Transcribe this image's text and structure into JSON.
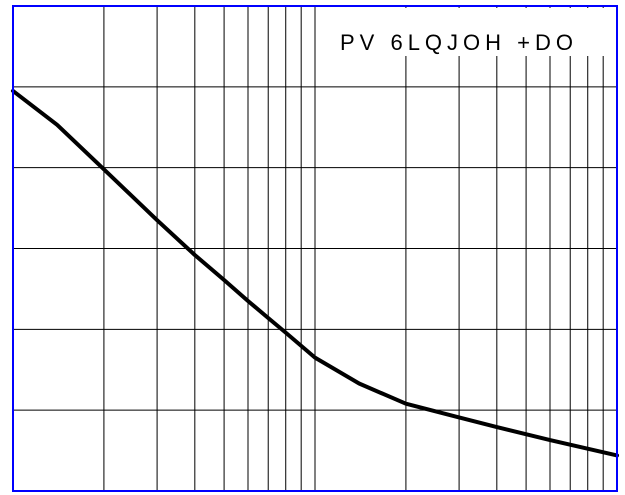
{
  "chart_data": {
    "type": "line",
    "title": "",
    "xlabel": "",
    "ylabel": "",
    "x_scale": "log",
    "x_decades": 2,
    "y_divisions": 6,
    "grid": true,
    "legend_position": "top-right",
    "legend_text": "PV 6LQJOH +DO",
    "colors": {
      "frame": "#0000ff",
      "grid": "#000000",
      "curve": "#000000",
      "legend_bg": "#ffffff"
    },
    "series": [
      {
        "points": [
          {
            "x": 1.0,
            "y": 4.95
          },
          {
            "x": 1.4,
            "y": 4.53
          },
          {
            "x": 2.0,
            "y": 3.98
          },
          {
            "x": 3.0,
            "y": 3.35
          },
          {
            "x": 4.0,
            "y": 2.92
          },
          {
            "x": 5.0,
            "y": 2.61
          },
          {
            "x": 6.0,
            "y": 2.35
          },
          {
            "x": 7.0,
            "y": 2.14
          },
          {
            "x": 8.0,
            "y": 1.96
          },
          {
            "x": 10.0,
            "y": 1.65
          },
          {
            "x": 14.0,
            "y": 1.33
          },
          {
            "x": 20.0,
            "y": 1.08
          },
          {
            "x": 30.0,
            "y": 0.91
          },
          {
            "x": 40.0,
            "y": 0.79
          },
          {
            "x": 60.0,
            "y": 0.63
          },
          {
            "x": 100.0,
            "y": 0.44
          }
        ]
      }
    ]
  }
}
